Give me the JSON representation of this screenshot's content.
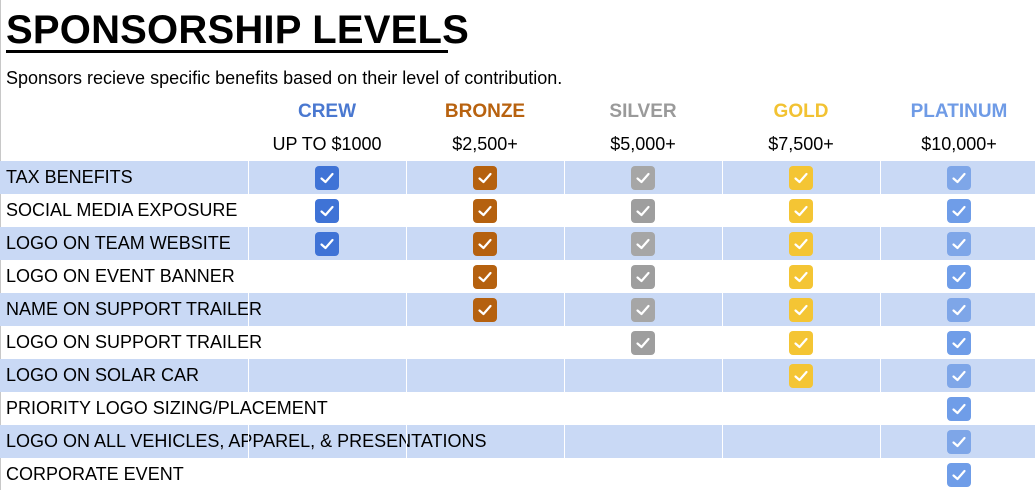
{
  "title": "SPONSORSHIP LEVELS",
  "subtitle": "Sponsors recieve specific benefits based on their level of contribution.",
  "tiers": [
    {
      "name": "CREW",
      "price": "UP TO $1000",
      "color": "#4a78d0",
      "check_color": "#3f73d6",
      "check_color_shaded": "#3f73d6"
    },
    {
      "name": "BRONZE",
      "price": "$2,500+",
      "color": "#b8620f",
      "check_color": "#b5610f",
      "check_color_shaded": "#b5610f"
    },
    {
      "name": "SILVER",
      "price": "$5,000+",
      "color": "#9a9a9a",
      "check_color": "#9e9e9e",
      "check_color_shaded": "#a6a6a6"
    },
    {
      "name": "GOLD",
      "price": "$7,500+",
      "color": "#f2c232",
      "check_color": "#f4c534",
      "check_color_shaded": "#f4c534"
    },
    {
      "name": "PLATINUM",
      "price": "$10,000+",
      "color": "#6f9be6",
      "check_color": "#6f9de8",
      "check_color_shaded": "#7ea6e8"
    }
  ],
  "benefits": [
    {
      "label": "TAX BENEFITS",
      "checks": [
        true,
        true,
        true,
        true,
        true
      ]
    },
    {
      "label": "SOCIAL MEDIA EXPOSURE",
      "checks": [
        true,
        true,
        true,
        true,
        true
      ]
    },
    {
      "label": "LOGO ON TEAM WEBSITE",
      "checks": [
        true,
        true,
        true,
        true,
        true
      ]
    },
    {
      "label": "LOGO ON EVENT BANNER",
      "checks": [
        false,
        true,
        true,
        true,
        true
      ]
    },
    {
      "label": "NAME ON SUPPORT TRAILER",
      "checks": [
        false,
        true,
        true,
        true,
        true
      ]
    },
    {
      "label": "LOGO ON SUPPORT TRAILER",
      "checks": [
        false,
        false,
        true,
        true,
        true
      ]
    },
    {
      "label": "LOGO ON SOLAR CAR",
      "checks": [
        false,
        false,
        false,
        true,
        true
      ]
    },
    {
      "label": "PRIORITY LOGO SIZING/PLACEMENT",
      "checks": [
        false,
        false,
        false,
        false,
        true
      ]
    },
    {
      "label": "LOGO ON ALL VEHICLES, APPAREL, & PRESENTATIONS",
      "checks": [
        false,
        false,
        false,
        false,
        true
      ]
    },
    {
      "label": "CORPORATE EVENT",
      "checks": [
        false,
        false,
        false,
        false,
        true
      ]
    }
  ],
  "row_shade_color": "#c9d9f5",
  "check_icon": "checkbox-checked-icon"
}
